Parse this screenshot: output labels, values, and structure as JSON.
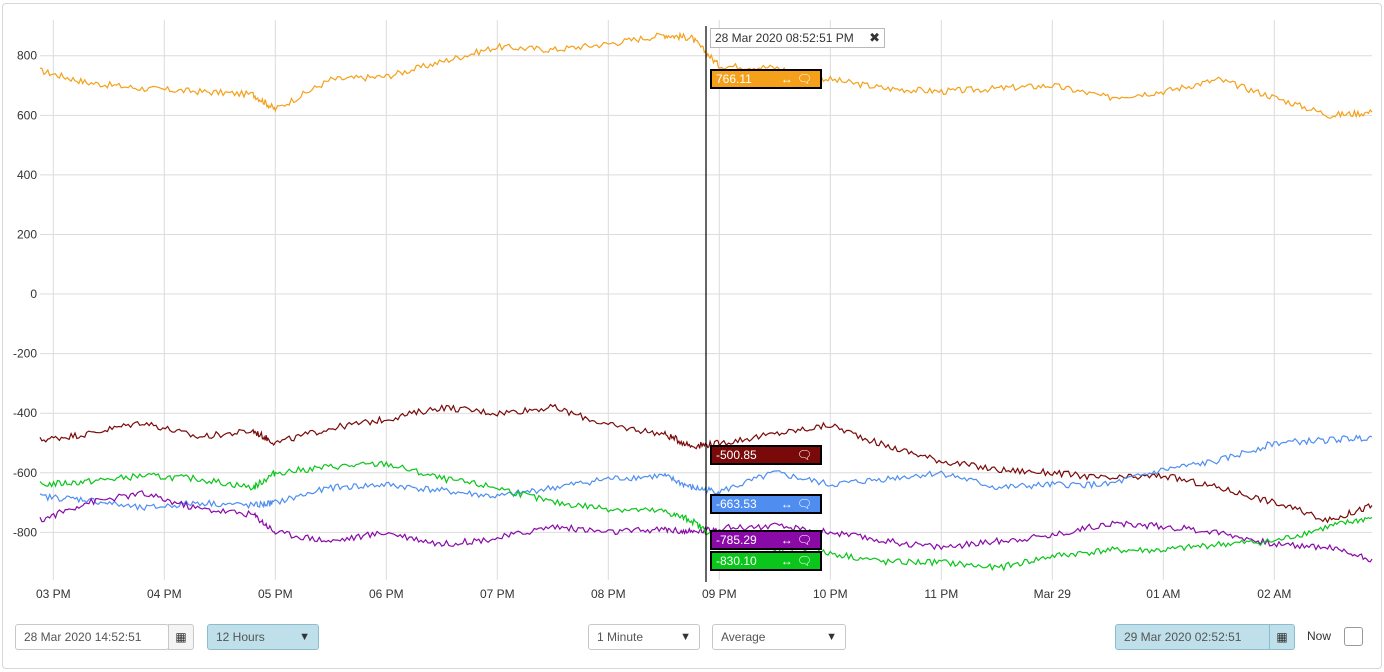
{
  "chart_data": {
    "type": "line",
    "x_ticks": [
      "03 PM",
      "04 PM",
      "05 PM",
      "06 PM",
      "07 PM",
      "08 PM",
      "09 PM",
      "10 PM",
      "11 PM",
      "Mar 29",
      "01 AM",
      "02 AM"
    ],
    "y_ticks": [
      "800",
      "600",
      "400",
      "200",
      "0",
      "-200",
      "-400",
      "-600",
      "-800"
    ],
    "ylim": [
      -960,
      920
    ],
    "x_range_hours": [
      14.88,
      26.88
    ],
    "grid": true,
    "cursor_hour": 20.88,
    "series": [
      {
        "color": "#f5a01a",
        "x": [
          14.88,
          15.3,
          15.8,
          16.3,
          16.8,
          17.0,
          17.5,
          18.0,
          18.5,
          19.0,
          19.5,
          20.0,
          20.5,
          20.75,
          21.0,
          21.5,
          22.0,
          22.5,
          23.0,
          23.5,
          24.0,
          24.5,
          25.0,
          25.5,
          26.0,
          26.5,
          26.88
        ],
        "values": [
          750,
          710,
          690,
          680,
          670,
          620,
          720,
          730,
          780,
          830,
          820,
          840,
          870,
          860,
          766,
          760,
          720,
          690,
          680,
          690,
          700,
          660,
          680,
          720,
          660,
          600,
          610
        ]
      },
      {
        "color": "#7a0a0a",
        "x": [
          14.88,
          15.3,
          15.8,
          16.3,
          16.8,
          17.0,
          17.5,
          18.0,
          18.5,
          19.0,
          19.5,
          20.0,
          20.5,
          20.75,
          21.0,
          21.5,
          22.0,
          22.5,
          23.0,
          23.5,
          24.0,
          24.5,
          25.0,
          25.5,
          26.0,
          26.5,
          26.88
        ],
        "values": [
          -490,
          -470,
          -430,
          -480,
          -460,
          -500,
          -450,
          -420,
          -380,
          -400,
          -380,
          -440,
          -470,
          -510,
          -501,
          -470,
          -440,
          -510,
          -560,
          -590,
          -600,
          -620,
          -610,
          -650,
          -700,
          -760,
          -710
        ]
      },
      {
        "color": "#4f8ef0",
        "x": [
          14.88,
          15.3,
          15.8,
          16.3,
          16.8,
          17.0,
          17.5,
          18.0,
          18.5,
          19.0,
          19.5,
          20.0,
          20.5,
          20.75,
          21.0,
          21.5,
          22.0,
          22.5,
          23.0,
          23.5,
          24.0,
          24.5,
          25.0,
          25.5,
          26.0,
          26.5,
          26.88
        ],
        "values": [
          -680,
          -690,
          -720,
          -700,
          -710,
          -700,
          -650,
          -640,
          -660,
          -680,
          -650,
          -620,
          -610,
          -650,
          -664,
          -600,
          -640,
          -620,
          -600,
          -650,
          -640,
          -640,
          -590,
          -560,
          -500,
          -490,
          -480
        ]
      },
      {
        "color": "#8a0aa8",
        "x": [
          14.88,
          15.3,
          15.8,
          16.3,
          16.8,
          17.0,
          17.5,
          18.0,
          18.5,
          19.0,
          19.5,
          20.0,
          20.5,
          20.75,
          21.0,
          21.5,
          22.0,
          22.5,
          23.0,
          23.5,
          24.0,
          24.5,
          25.0,
          25.5,
          26.0,
          26.5,
          26.88
        ],
        "values": [
          -760,
          -700,
          -670,
          -720,
          -740,
          -800,
          -830,
          -800,
          -840,
          -820,
          -780,
          -800,
          -790,
          -800,
          -785,
          -780,
          -800,
          -830,
          -850,
          -830,
          -810,
          -770,
          -780,
          -800,
          -840,
          -850,
          -890
        ]
      },
      {
        "color": "#0ac51a",
        "x": [
          14.88,
          15.3,
          15.8,
          16.3,
          16.8,
          17.0,
          17.5,
          18.0,
          18.5,
          19.0,
          19.5,
          20.0,
          20.5,
          20.75,
          21.0,
          21.5,
          22.0,
          22.5,
          23.0,
          23.5,
          24.0,
          24.5,
          25.0,
          25.5,
          26.0,
          26.5,
          26.88
        ],
        "values": [
          -640,
          -630,
          -610,
          -620,
          -650,
          -600,
          -580,
          -570,
          -620,
          -650,
          -700,
          -720,
          -730,
          -760,
          -830,
          -860,
          -870,
          -900,
          -900,
          -920,
          -880,
          -860,
          -860,
          -840,
          -830,
          -780,
          -750
        ]
      }
    ]
  },
  "cursor": {
    "timestamp": "28 Mar 2020 08:52:51 PM",
    "close_icon": "close-icon"
  },
  "readouts": [
    {
      "value": "766.11",
      "color": "#f5a01a"
    },
    {
      "value": "-500.85",
      "color": "#7a0a0a"
    },
    {
      "value": "-663.53",
      "color": "#4f8ef0"
    },
    {
      "value": "-785.29",
      "color": "#8a0aa8"
    },
    {
      "value": "-830.10",
      "color": "#0ac51a"
    }
  ],
  "controls": {
    "start_date": "28 Mar 2020 14:52:51",
    "range": "12 Hours",
    "interval": "1 Minute",
    "aggregate": "Average",
    "end_date": "29 Mar 2020 02:52:51",
    "now_label": "Now"
  }
}
